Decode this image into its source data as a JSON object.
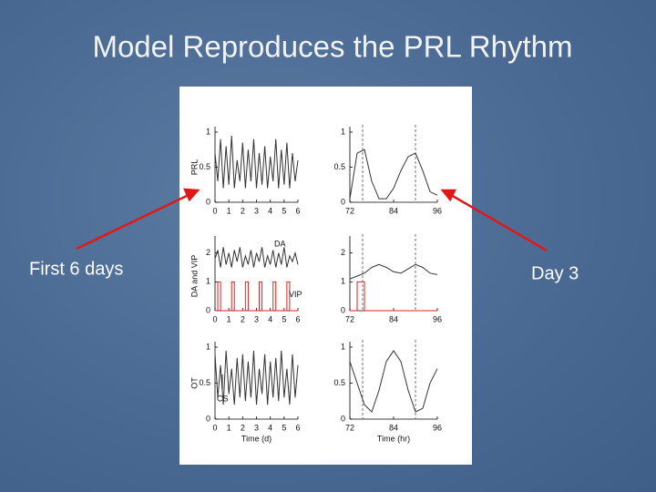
{
  "title": "Model Reproduces the PRL Rhythm",
  "left_label": "First 6 days",
  "right_label": "Day 3",
  "chart_data": [
    {
      "type": "line",
      "ylabel": "PRL",
      "color": "#333333",
      "x": [
        0,
        0.2,
        0.4,
        0.6,
        0.8,
        1,
        1.2,
        1.4,
        1.6,
        1.8,
        2,
        2.2,
        2.4,
        2.6,
        2.8,
        3,
        3.2,
        3.4,
        3.6,
        3.8,
        4,
        4.2,
        4.4,
        4.6,
        4.8,
        5,
        5.2,
        5.4,
        5.6,
        5.8,
        6
      ],
      "values": [
        0.7,
        0.3,
        0.9,
        0.2,
        0.8,
        0.25,
        0.95,
        0.2,
        0.6,
        0.3,
        0.85,
        0.2,
        0.75,
        0.3,
        0.9,
        0.2,
        0.7,
        0.25,
        0.8,
        0.2,
        0.65,
        0.3,
        0.9,
        0.2,
        0.75,
        0.25,
        0.85,
        0.2,
        0.7,
        0.3,
        0.6
      ],
      "xlim": [
        0,
        6
      ],
      "xticks": [
        0,
        1,
        2,
        3,
        4,
        5,
        6
      ],
      "ylim": [
        0,
        1
      ],
      "yticks": [
        0,
        0.5,
        1
      ]
    },
    {
      "type": "line",
      "color": "#333333",
      "x": [
        72,
        74,
        76,
        78,
        80,
        82,
        84,
        86,
        88,
        90,
        92,
        94,
        96
      ],
      "values": [
        0.05,
        0.7,
        0.75,
        0.3,
        0.05,
        0.05,
        0.2,
        0.45,
        0.65,
        0.7,
        0.45,
        0.15,
        0.1
      ],
      "xlim": [
        72,
        96
      ],
      "xticks": [
        72,
        84,
        96
      ],
      "ylim": [
        0,
        1
      ],
      "yticks": [
        0,
        0.5,
        1
      ],
      "vlines": [
        75.5,
        90
      ]
    },
    {
      "type": "line",
      "ylabel": "DA and VIP",
      "x": [
        0,
        0.2,
        0.4,
        0.6,
        0.8,
        1,
        1.2,
        1.4,
        1.6,
        1.8,
        2,
        2.2,
        2.4,
        2.6,
        2.8,
        3,
        3.2,
        3.4,
        3.6,
        3.8,
        4,
        4.2,
        4.4,
        4.6,
        4.8,
        5,
        5.2,
        5.4,
        5.6,
        5.8,
        6
      ],
      "series": [
        {
          "name": "DA",
          "color": "#333333",
          "values": [
            1.8,
            2.1,
            1.5,
            2.2,
            1.6,
            2.0,
            1.5,
            2.1,
            1.7,
            2.2,
            1.5,
            1.9,
            1.6,
            2.1,
            1.5,
            2.0,
            1.7,
            2.2,
            1.5,
            1.9,
            1.6,
            2.1,
            1.5,
            2.0,
            1.6,
            2.2,
            1.5,
            1.9,
            1.7,
            2.0,
            1.6
          ]
        },
        {
          "name": "VIP",
          "color": "#e02020",
          "step": true,
          "values": [
            0,
            1,
            0,
            0,
            0,
            0,
            1,
            0,
            0,
            0,
            0,
            1,
            0,
            0,
            0,
            0,
            1,
            0,
            0,
            0,
            0,
            1,
            0,
            0,
            0,
            0,
            1,
            0,
            0,
            0,
            0
          ]
        }
      ],
      "xlim": [
        0,
        6
      ],
      "xticks": [
        0,
        1,
        2,
        3,
        4,
        5,
        6
      ],
      "ylim": [
        0,
        2.4
      ],
      "yticks": [
        0,
        1,
        2
      ]
    },
    {
      "type": "line",
      "x": [
        72,
        74,
        76,
        78,
        80,
        82,
        84,
        86,
        88,
        90,
        92,
        94,
        96
      ],
      "series": [
        {
          "color": "#333333",
          "values": [
            1.1,
            1.2,
            1.3,
            1.5,
            1.6,
            1.5,
            1.35,
            1.3,
            1.45,
            1.6,
            1.5,
            1.3,
            1.25
          ]
        },
        {
          "color": "#e02020",
          "step": true,
          "values": [
            0,
            1,
            0,
            0,
            0,
            0,
            0,
            0,
            0,
            0,
            0,
            0,
            0
          ]
        }
      ],
      "xlim": [
        72,
        96
      ],
      "xticks": [
        72,
        84,
        96
      ],
      "ylim": [
        0,
        2.4
      ],
      "yticks": [
        0,
        1,
        2
      ],
      "vlines": [
        75.5,
        90
      ]
    },
    {
      "type": "line",
      "ylabel": "OT",
      "xlabel": "Time (d)",
      "annotation": "CS",
      "color": "#333333",
      "x": [
        0,
        0.2,
        0.4,
        0.6,
        0.8,
        1,
        1.2,
        1.4,
        1.6,
        1.8,
        2,
        2.2,
        2.4,
        2.6,
        2.8,
        3,
        3.2,
        3.4,
        3.6,
        3.8,
        4,
        4.2,
        4.4,
        4.6,
        4.8,
        5,
        5.2,
        5.4,
        5.6,
        5.8,
        6
      ],
      "values": [
        0.9,
        0.3,
        0.75,
        0.2,
        0.95,
        0.35,
        0.7,
        0.2,
        0.85,
        0.3,
        0.9,
        0.25,
        0.8,
        0.3,
        0.95,
        0.2,
        0.7,
        0.35,
        0.9,
        0.2,
        0.8,
        0.3,
        0.85,
        0.25,
        0.95,
        0.3,
        0.7,
        0.2,
        0.9,
        0.3,
        0.75
      ],
      "xlim": [
        0,
        6
      ],
      "xticks": [
        0,
        1,
        2,
        3,
        4,
        5,
        6
      ],
      "ylim": [
        0,
        1
      ],
      "yticks": [
        0,
        0.5,
        1
      ]
    },
    {
      "type": "line",
      "xlabel": "Time (hr)",
      "color": "#333333",
      "x": [
        72,
        74,
        76,
        78,
        80,
        82,
        84,
        86,
        88,
        90,
        92,
        94,
        96
      ],
      "values": [
        0.8,
        0.5,
        0.2,
        0.1,
        0.4,
        0.8,
        0.95,
        0.8,
        0.4,
        0.1,
        0.15,
        0.5,
        0.7
      ],
      "xlim": [
        72,
        96
      ],
      "xticks": [
        72,
        84,
        96
      ],
      "ylim": [
        0,
        1
      ],
      "yticks": [
        0,
        0.5,
        1
      ],
      "vlines": [
        75.5,
        90
      ]
    }
  ]
}
